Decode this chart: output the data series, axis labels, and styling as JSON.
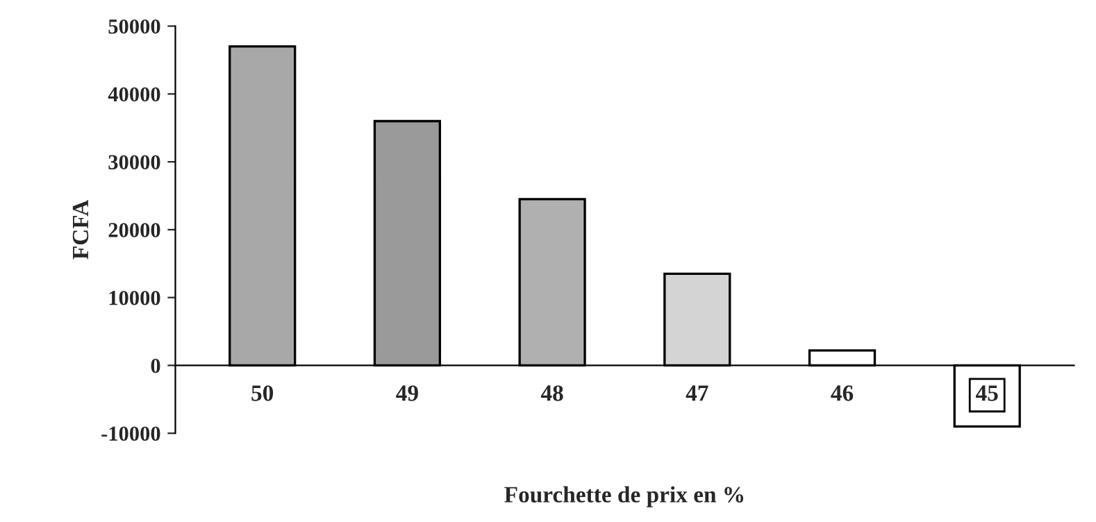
{
  "chart_data": {
    "type": "bar",
    "categories": [
      "50",
      "49",
      "48",
      "47",
      "46",
      "45"
    ],
    "values": [
      47000,
      36000,
      24500,
      13500,
      2200,
      -9000
    ],
    "colors": [
      "#a8a8a8",
      "#9a9a9a",
      "#b0b0b0",
      "#d4d4d4",
      "#ffffff",
      "#ffffff"
    ],
    "xlabel": "Fourchette de prix en %",
    "ylabel": "FCFA",
    "ylim": [
      -10000,
      50000
    ],
    "yticks": [
      -10000,
      0,
      10000,
      20000,
      30000,
      40000,
      50000
    ],
    "legend": false
  }
}
